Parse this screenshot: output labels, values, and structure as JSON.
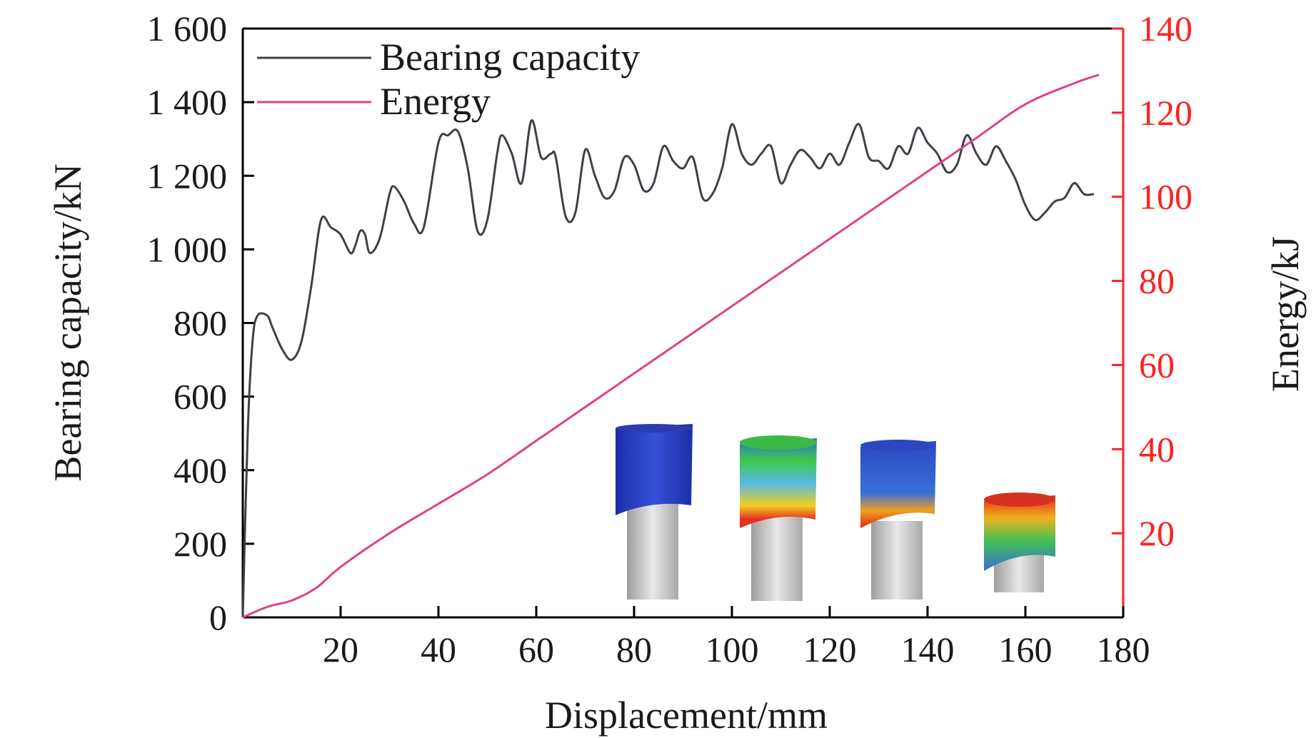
{
  "chart_data": {
    "type": "line",
    "title": "",
    "xlabel": "Displacement/mm",
    "ylabel": "Bearing capacity/kN",
    "y2label": "Energy/kJ",
    "xlim": [
      0,
      180
    ],
    "ylim": [
      0,
      1600
    ],
    "y2lim": [
      0,
      140
    ],
    "x_ticks": [
      20,
      40,
      60,
      80,
      100,
      120,
      140,
      160,
      180
    ],
    "y_ticks": [
      "0",
      "200",
      "400",
      "600",
      "800",
      "1 000",
      "1 200",
      "1 400",
      "1 600"
    ],
    "y2_ticks": [
      20,
      40,
      60,
      80,
      100,
      120,
      140
    ],
    "grid": false,
    "legend_position": "top-left",
    "colors": {
      "bearing": "#3d4147",
      "energy": "#e0408a",
      "right_axis": "#ff2020",
      "left_axis": "#000000"
    },
    "series": [
      {
        "name": "Bearing capacity",
        "axis": "left",
        "x": [
          0,
          1,
          2,
          3,
          5,
          6,
          8,
          10,
          12,
          14,
          16,
          18,
          20,
          22,
          23,
          24,
          25,
          26,
          28,
          30,
          31,
          33,
          35,
          37,
          40,
          42,
          44,
          46,
          48,
          50,
          52,
          53,
          55,
          57,
          59,
          61,
          63,
          64,
          66,
          68,
          70,
          72,
          74,
          76,
          78,
          80,
          82,
          84,
          86,
          88,
          90,
          92,
          94,
          96,
          98,
          100,
          102,
          104,
          106,
          108,
          110,
          112,
          114,
          116,
          118,
          120,
          122,
          124,
          126,
          128,
          130,
          132,
          134,
          136,
          138,
          140,
          142,
          144,
          146,
          148,
          150,
          152,
          154,
          156,
          158,
          160,
          162,
          164,
          166,
          168,
          170,
          172,
          174
        ],
        "y": [
          0,
          500,
          750,
          820,
          820,
          790,
          730,
          700,
          750,
          900,
          1080,
          1060,
          1040,
          990,
          1010,
          1050,
          1040,
          990,
          1030,
          1150,
          1170,
          1130,
          1070,
          1060,
          1290,
          1310,
          1320,
          1220,
          1050,
          1080,
          1260,
          1310,
          1260,
          1180,
          1350,
          1250,
          1260,
          1250,
          1090,
          1100,
          1270,
          1200,
          1140,
          1160,
          1250,
          1230,
          1160,
          1180,
          1280,
          1240,
          1220,
          1250,
          1140,
          1150,
          1220,
          1340,
          1260,
          1230,
          1260,
          1280,
          1180,
          1230,
          1270,
          1250,
          1220,
          1260,
          1230,
          1290,
          1340,
          1250,
          1240,
          1220,
          1280,
          1260,
          1330,
          1290,
          1260,
          1210,
          1230,
          1310,
          1260,
          1230,
          1280,
          1240,
          1190,
          1120,
          1080,
          1100,
          1130,
          1140,
          1180,
          1150,
          1150
        ]
      },
      {
        "name": "Energy",
        "axis": "right",
        "x": [
          0,
          5,
          10,
          15,
          20,
          30,
          40,
          50,
          60,
          70,
          80,
          90,
          100,
          110,
          120,
          130,
          140,
          150,
          160,
          170,
          175
        ],
        "y": [
          0,
          2.5,
          4,
          7,
          12,
          20,
          27,
          34,
          42,
          50,
          58,
          66,
          74,
          82,
          90,
          98,
          106,
          114,
          122,
          127,
          129
        ]
      }
    ]
  },
  "inset": {
    "icon": "crushed-tube-simulation-images",
    "count": 4
  }
}
